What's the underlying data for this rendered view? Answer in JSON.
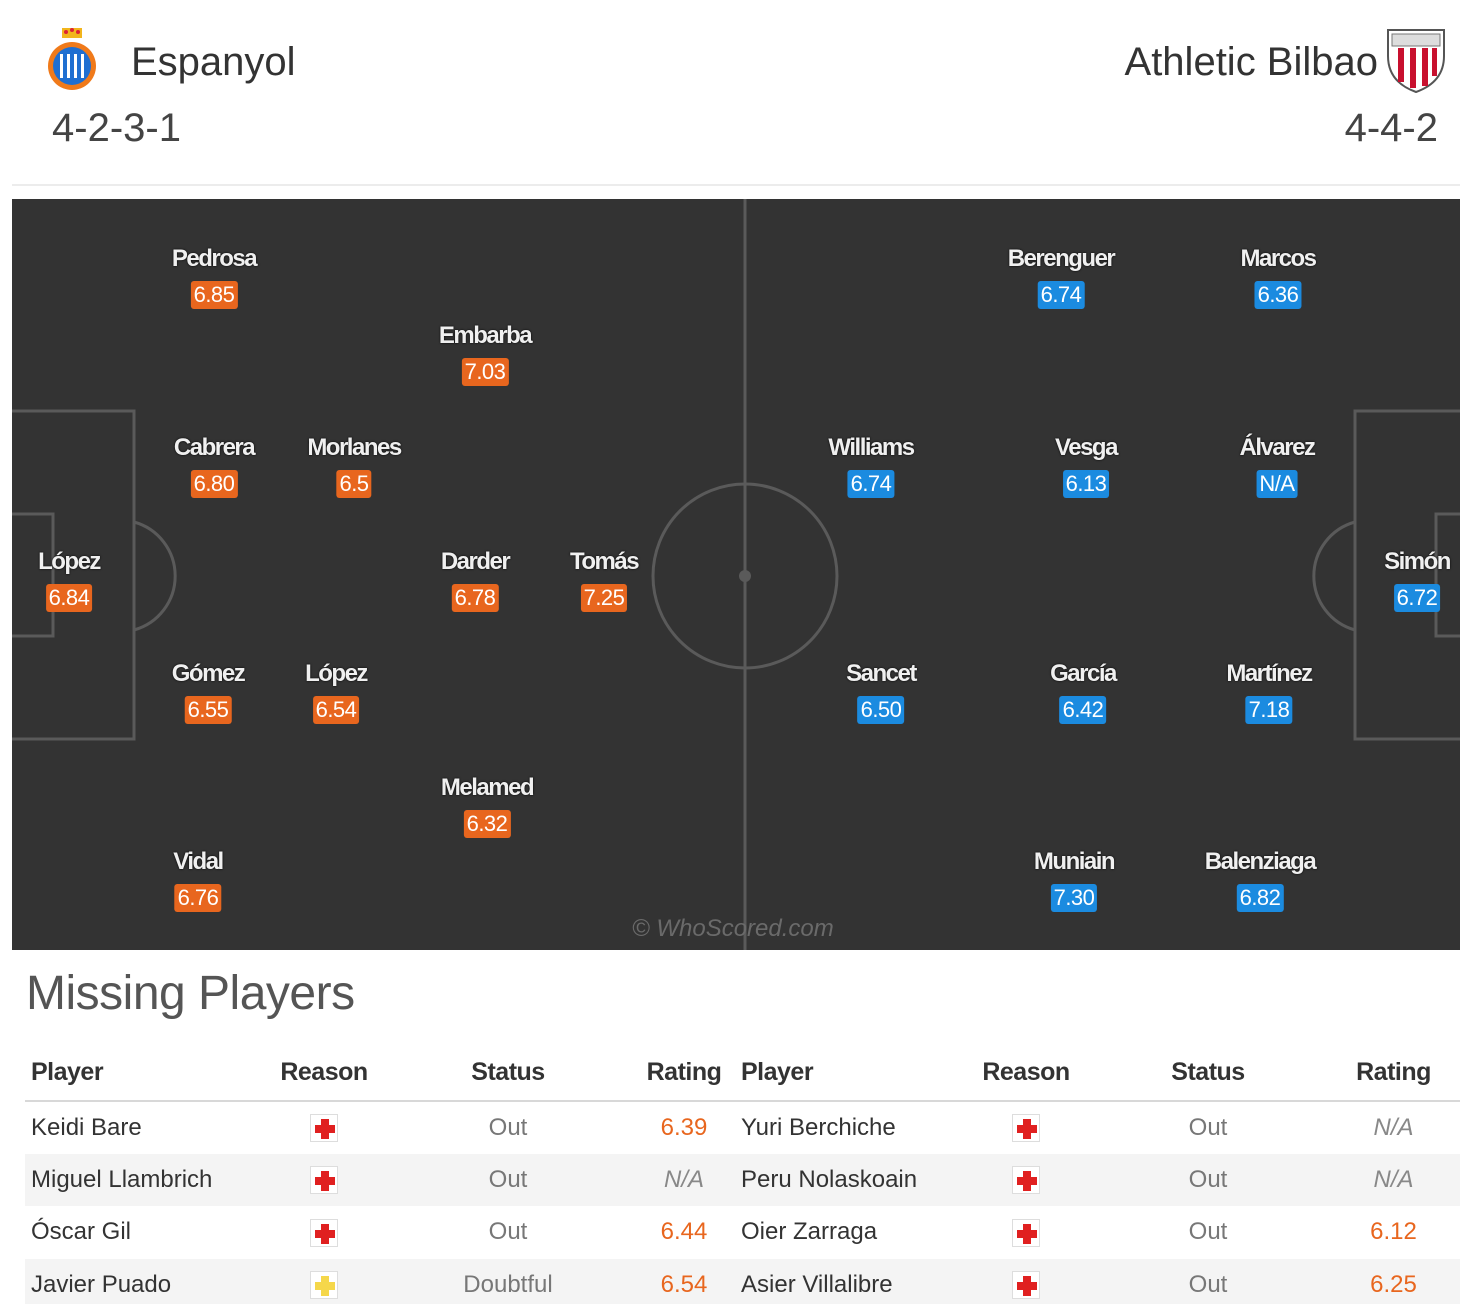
{
  "home": {
    "name": "Espanyol",
    "formation": "4-2-3-1",
    "crest_icon": "espanyol-crest-icon",
    "players": [
      {
        "name": "Pedrosa",
        "rating": "6.85"
      },
      {
        "name": "Embarba",
        "rating": "7.03"
      },
      {
        "name": "Cabrera",
        "rating": "6.80"
      },
      {
        "name": "Morlanes",
        "rating": "6.5"
      },
      {
        "name": "López",
        "rating": "6.84"
      },
      {
        "name": "Darder",
        "rating": "6.78"
      },
      {
        "name": "Tomás",
        "rating": "7.25"
      },
      {
        "name": "Gómez",
        "rating": "6.55"
      },
      {
        "name": "López",
        "rating": "6.54"
      },
      {
        "name": "Melamed",
        "rating": "6.32"
      },
      {
        "name": "Vidal",
        "rating": "6.76"
      }
    ]
  },
  "away": {
    "name": "Athletic Bilbao",
    "formation": "4-4-2",
    "crest_icon": "athletic-bilbao-crest-icon",
    "players": [
      {
        "name": "Berenguer",
        "rating": "6.74"
      },
      {
        "name": "Marcos",
        "rating": "6.36"
      },
      {
        "name": "Williams",
        "rating": "6.74"
      },
      {
        "name": "Vesga",
        "rating": "6.13"
      },
      {
        "name": "Álvarez",
        "rating": "N/A"
      },
      {
        "name": "Simón",
        "rating": "6.72"
      },
      {
        "name": "Sancet",
        "rating": "6.50"
      },
      {
        "name": "García",
        "rating": "6.42"
      },
      {
        "name": "Martínez",
        "rating": "7.18"
      },
      {
        "name": "Muniain",
        "rating": "7.30"
      },
      {
        "name": "Balenziaga",
        "rating": "6.82"
      }
    ]
  },
  "watermark": "© WhoScored.com",
  "missing": {
    "title": "Missing Players",
    "headers": {
      "player": "Player",
      "reason": "Reason",
      "status": "Status",
      "rating": "Rating"
    },
    "home": [
      {
        "player": "Keidi Bare",
        "reason": "injury-icon",
        "status": "Out",
        "rating": "6.39"
      },
      {
        "player": "Miguel Llambrich",
        "reason": "injury-icon",
        "status": "Out",
        "rating": "N/A"
      },
      {
        "player": "Óscar Gil",
        "reason": "injury-icon",
        "status": "Out",
        "rating": "6.44"
      },
      {
        "player": "Javier Puado",
        "reason": "doubtful-injury-icon",
        "status": "Doubtful",
        "rating": "6.54"
      }
    ],
    "away": [
      {
        "player": "Yuri Berchiche",
        "reason": "injury-icon",
        "status": "Out",
        "rating": "N/A"
      },
      {
        "player": "Peru Nolaskoain",
        "reason": "injury-icon",
        "status": "Out",
        "rating": "N/A"
      },
      {
        "player": "Oier Zarraga",
        "reason": "injury-icon",
        "status": "Out",
        "rating": "6.12"
      },
      {
        "player": "Asier Villalibre",
        "reason": "injury-icon",
        "status": "Out",
        "rating": "6.25"
      }
    ]
  },
  "colors": {
    "home_rating": "#e8661e",
    "away_rating": "#1b8be0",
    "pitch": "#333333"
  }
}
